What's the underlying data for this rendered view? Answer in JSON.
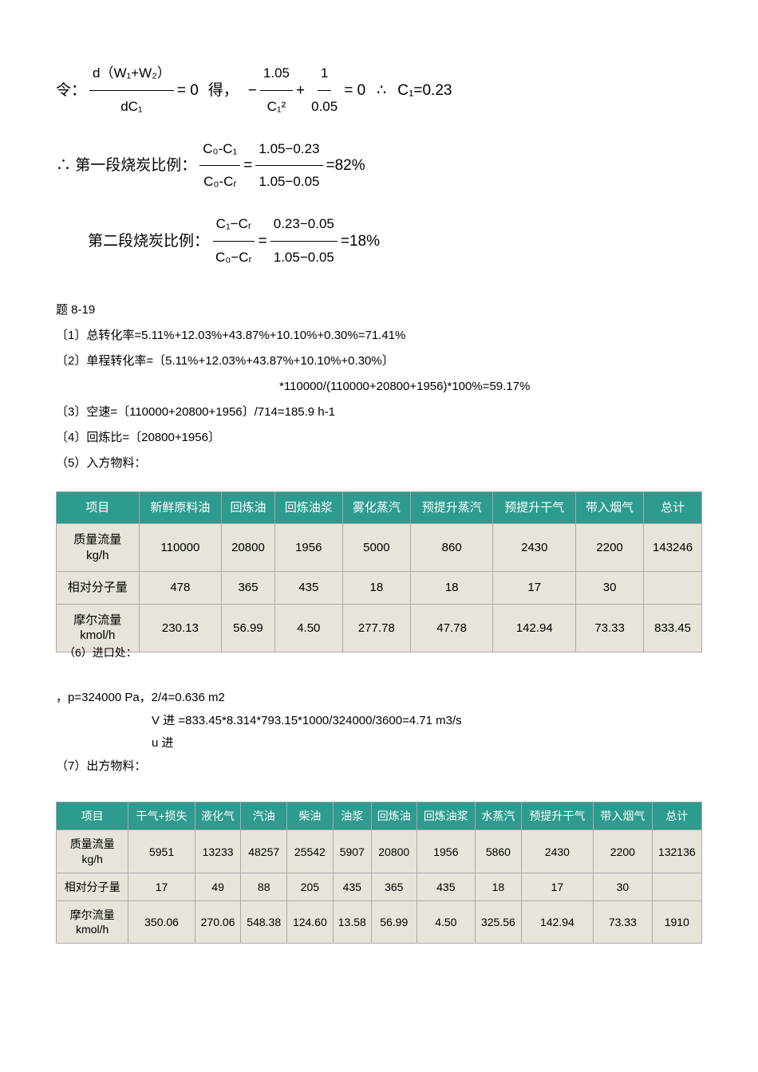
{
  "eq1": {
    "lead": "令：",
    "frac_num": "d（W₁+W₂）",
    "frac_den": "dC₁",
    "eq_zero": "= 0",
    "mid": "得，",
    "part2": "−",
    "f2num": "1.05",
    "f2den": "C₁²",
    "plus": "+",
    "f3num": "1",
    "f3den": "0.05",
    "eq_zero2": "= 0",
    "therefore": "∴",
    "res": "C₁=0.23"
  },
  "eq2": {
    "lead": "∴ 第一段烧炭比例：",
    "f1num": "C₀-C₁",
    "f1den": "C₀-Cᵣ",
    "eq": "=",
    "f2num": "1.05−0.23",
    "f2den": "1.05−0.05",
    "res": "=82%"
  },
  "eq3": {
    "lead": "第二段烧炭比例：",
    "f1num": "C₁−Cᵣ",
    "f1den": "C₀−Cᵣ",
    "eq": "=",
    "f2num": "0.23−0.05",
    "f2den": "1.05−0.05",
    "res": "=18%"
  },
  "ans": {
    "title": "题 8-19",
    "l1": "〔1〕总转化率=5.11%+12.03%+43.87%+10.10%+0.30%=71.41%",
    "l2": "〔2〕单程转化率=〔5.11%+12.03%+43.87%+10.10%+0.30%〕",
    "l2b": "*110000/(110000+20800+1956)*100%=59.17%",
    "l3": "〔3〕空速=〔110000+20800+1956〕/714=185.9 h-1",
    "l4": "〔4〕回炼比=〔20800+1956〕",
    "l5": "（5）入方物料："
  },
  "table1": {
    "headers": [
      "项目",
      "新鲜原料油",
      "回炼油",
      "回炼油浆",
      "雾化蒸汽",
      "预提升蒸汽",
      "预提升干气",
      "带入烟气",
      "总计"
    ],
    "rows": [
      [
        "质量流量\nkg/h",
        "110000",
        "20800",
        "1956",
        "5000",
        "860",
        "2430",
        "2200",
        "143246"
      ],
      [
        "相对分子量",
        "478",
        "365",
        "435",
        "18",
        "18",
        "17",
        "30",
        ""
      ],
      [
        "摩尔流量\nkmol/h",
        "230.13",
        "56.99",
        "4.50",
        "277.78",
        "47.78",
        "142.94",
        "73.33",
        "833.45"
      ]
    ]
  },
  "mid": {
    "l1": "（6）进口处：",
    "l2": "，p=324000 Pa，2/4=0.636 m2",
    "l3": "V 进 =833.45*8.314*793.15*1000/324000/3600=4.71 m3/s",
    "l4": "u 进",
    "l5": "（7）出方物料："
  },
  "table2": {
    "headers": [
      "项目",
      "干气+损失",
      "液化气",
      "汽油",
      "柴油",
      "油浆",
      "回炼油",
      "回炼油浆",
      "水蒸汽",
      "预提升干气",
      "带入烟气",
      "总计"
    ],
    "rows": [
      [
        "质量流量\nkg/h",
        "5951",
        "13233",
        "48257",
        "25542",
        "5907",
        "20800",
        "1956",
        "5860",
        "2430",
        "2200",
        "132136"
      ],
      [
        "相对分子量",
        "17",
        "49",
        "88",
        "205",
        "435",
        "365",
        "435",
        "18",
        "17",
        "30",
        ""
      ],
      [
        "摩尔流量\nkmol/h",
        "350.06",
        "270.06",
        "548.38",
        "124.60",
        "13.58",
        "56.99",
        "4.50",
        "325.56",
        "142.94",
        "73.33",
        "1910"
      ]
    ]
  }
}
